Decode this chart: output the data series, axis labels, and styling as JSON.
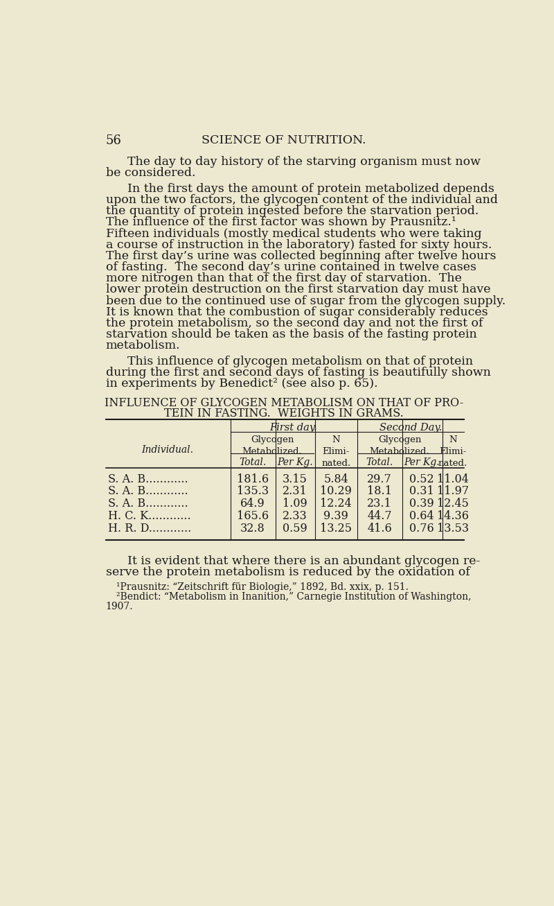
{
  "bg_color": "#EDE8D0",
  "text_color": "#1a1a1a",
  "page_number": "56",
  "header": "SCIENCE OF NUTRITION.",
  "paragraph1_line1": "The day to day history of the starving organism must now",
  "paragraph1_line2": "be considered.",
  "paragraph2": "In the first days the amount of protein metabolized depends upon the two factors, the glycogen content of the individual and the quantity of protein ingested before the starvation period. The influence of the first factor was shown by Prausnitz.¹ Fifteen individuals (mostly medical students who were taking a course of instruction in the laboratory) fasted for sixty hours. The first day’s urine was collected beginning after twelve hours of fasting.  The second day’s urine contained in twelve cases more nitrogen than that of the first day of starvation.  The lower protein destruction on the first starvation day must have been due to the continued use of sugar from the glycogen supply. It is known that the combustion of sugar considerably reduces the protein metabolism, so the second day and not the first of starvation should be taken as the basis of the fasting protein metabolism.",
  "paragraph3": "This influence of glycogen metabolism on that of protein during the first and second days of fasting is beautifully shown in experiments by Benedict² (see also p. 65).",
  "table_title_line1": "INFLUENCE OF GLYCOGEN METABOLISM ON THAT OF PRO-",
  "table_title_line2": "TEIN IN FASTING.  WEIGHTS IN GRAMS.",
  "col_header1": "First day.",
  "col_header2": "Second Day.",
  "col_sub_glycogen": "Glycogen\nMetabolized.",
  "col_sub_n": "N\nElimi-\nnated.",
  "col_total": "Total.",
  "col_perkg": "Per Kg.",
  "row_label": "Individual.",
  "individuals": [
    "S. A. B............",
    "S. A. B............",
    "S. A. B............",
    "H. C. K............",
    "H. R. D............"
  ],
  "fd_total": [
    181.6,
    135.3,
    64.9,
    165.6,
    32.8
  ],
  "fd_perkg": [
    3.15,
    2.31,
    1.09,
    2.33,
    0.59
  ],
  "fd_n": [
    5.84,
    10.29,
    12.24,
    9.39,
    13.25
  ],
  "sd_total": [
    29.7,
    18.1,
    23.1,
    44.7,
    41.6
  ],
  "sd_perkg": [
    0.52,
    0.31,
    0.39,
    0.64,
    0.76
  ],
  "sd_n": [
    11.04,
    11.97,
    12.45,
    14.36,
    13.53
  ],
  "paragraph4_line1": "It is evident that where there is an abundant glycogen re-",
  "paragraph4_line2": "serve the protein metabolism is reduced by the oxidation of",
  "footnote1": "¹Prausnitz: “Zeitschrift für Biologie,” 1892, Bd. xxix, p. 151.",
  "footnote2_line1": "²Bendict: “Metabolism in Inanition,” Carnegie Institution of Washington,",
  "footnote2_line2": "1907."
}
